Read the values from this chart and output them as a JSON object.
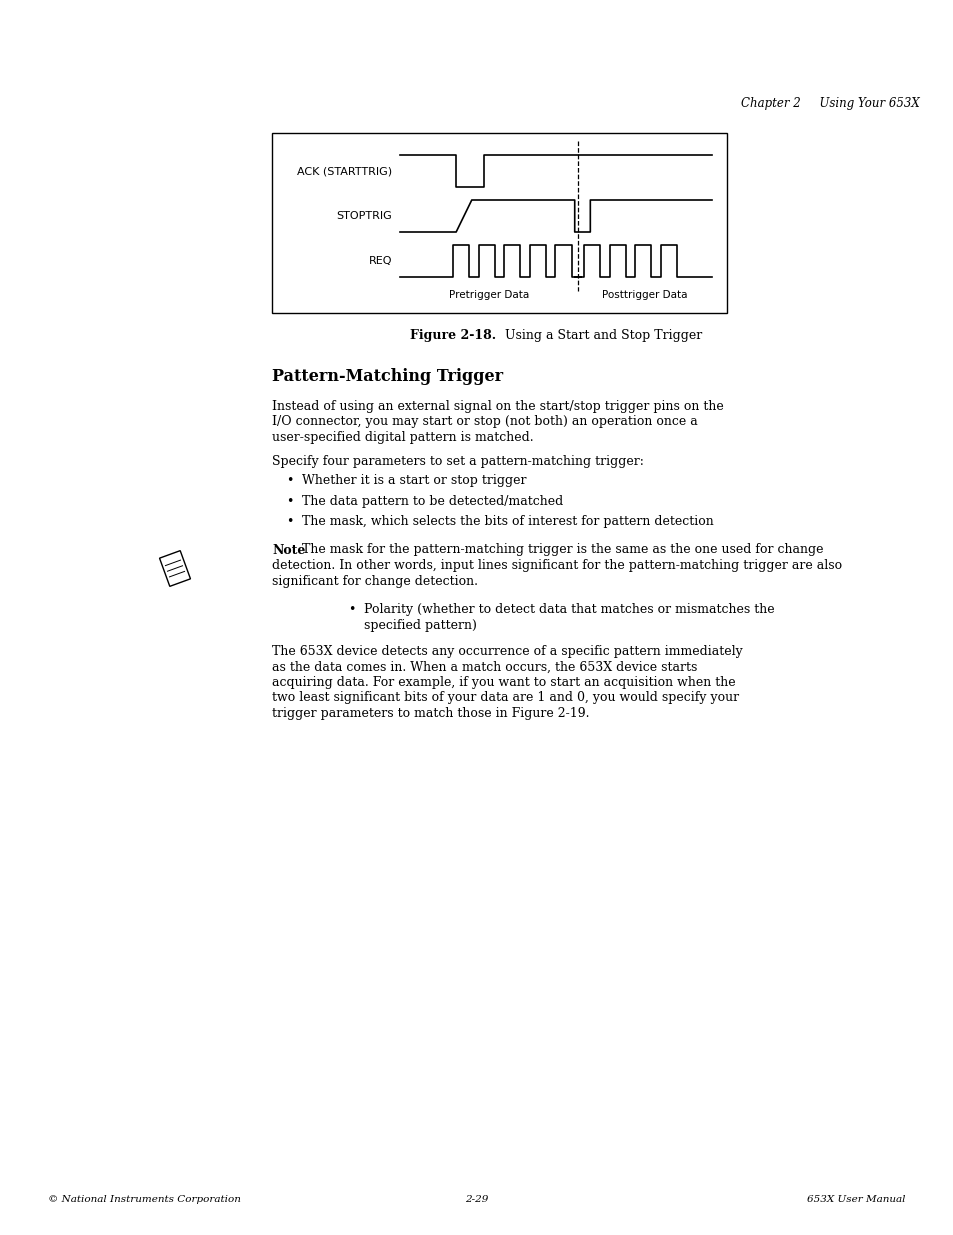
{
  "page_bg": "#ffffff",
  "header_right": "Chapter 2     Using Your 653X",
  "header_fontsize": 8.5,
  "figure_caption_bold": "Figure 2-18.",
  "figure_caption_normal": "  Using a Start and Stop Trigger",
  "section_title": "Pattern-Matching Trigger",
  "para1_lines": [
    "Instead of using an external signal on the start/stop trigger pins on the",
    "I/O connector, you may start or stop (not both) an operation once a",
    "user-specified digital pattern is matched."
  ],
  "para2": "Specify four parameters to set a pattern-matching trigger:",
  "bullets1": [
    "Whether it is a start or stop trigger",
    "The data pattern to be detected/matched",
    "The mask, which selects the bits of interest for pattern detection"
  ],
  "note_bold": "Note",
  "note_lines": [
    "The mask for the pattern-matching trigger is the same as the one used for change",
    "detection. In other words, input lines significant for the pattern-matching trigger are also",
    "significant for change detection."
  ],
  "bullet2_lines": [
    "Polarity (whether to detect data that matches or mismatches the",
    "specified pattern)"
  ],
  "para3_lines": [
    "The 653X device detects any occurrence of a specific pattern immediately",
    "as the data comes in. When a match occurs, the 653X device starts",
    "acquiring data. For example, if you want to start an acquisition when the",
    "two least significant bits of your data are 1 and 0, you would specify your",
    "trigger parameters to match those in Figure 2-19."
  ],
  "footer_left": "© National Instruments Corporation",
  "footer_center": "2-29",
  "footer_right": "653X User Manual",
  "footer_fontsize": 7.5,
  "text_color": "#000000",
  "body_fontsize": 9.0,
  "title_fontsize": 11.5,
  "signal_names": [
    "ACK (STARTTRIG)",
    "STOPTRIG",
    "REQ"
  ],
  "pretrigger_label": "Pretrigger Data",
  "posttrigger_label": "Posttrigger Data"
}
